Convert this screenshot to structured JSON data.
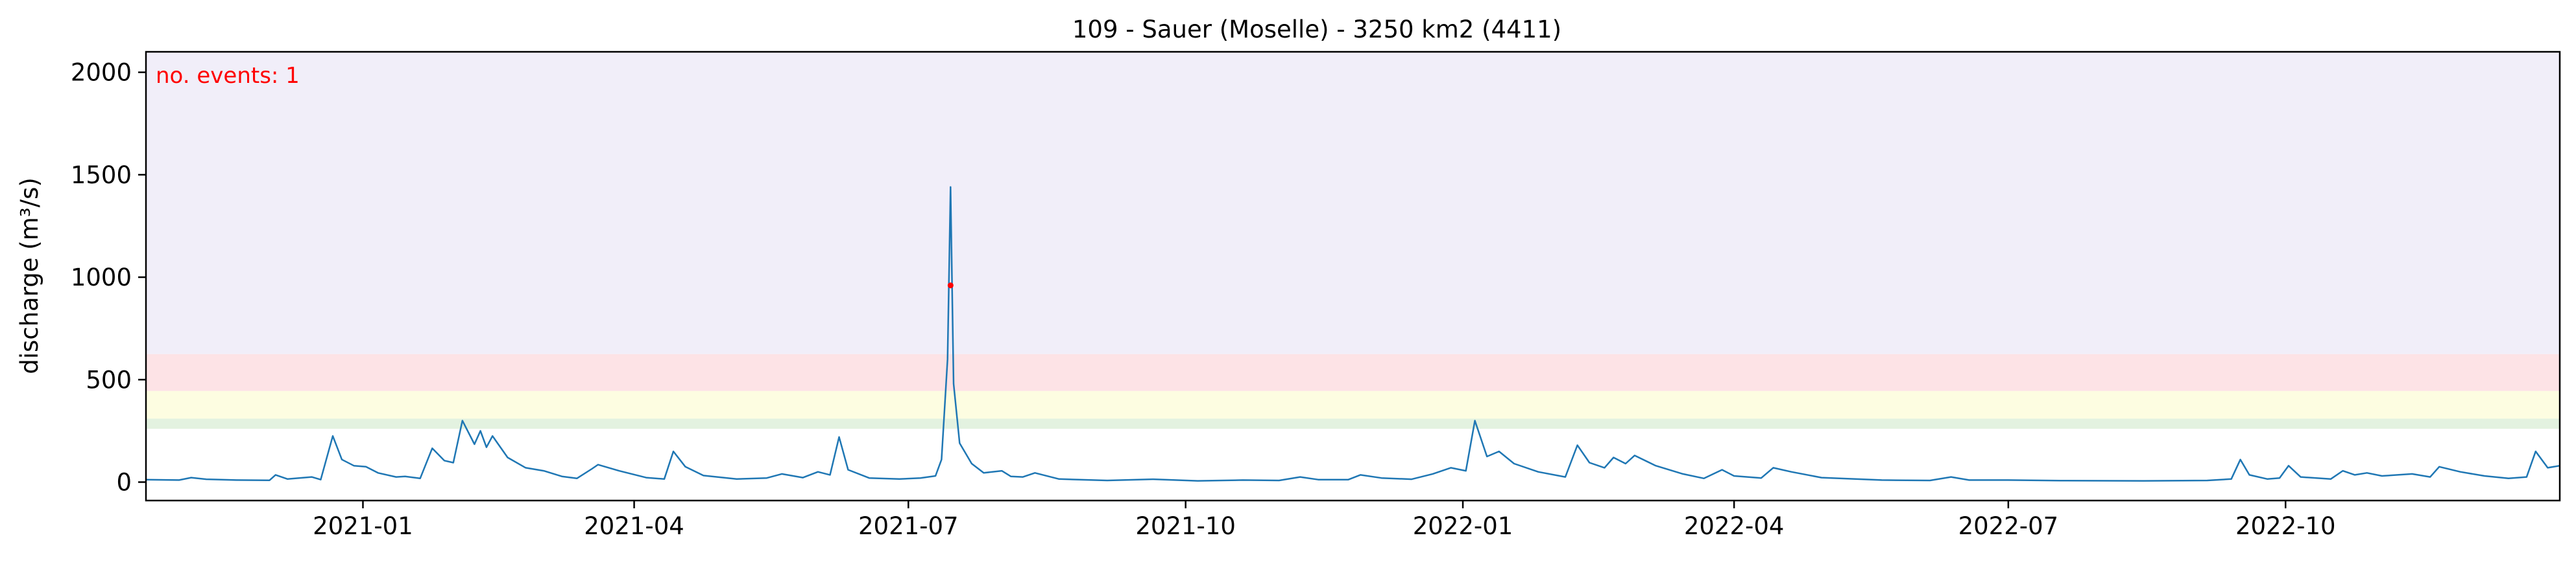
{
  "chart_data": {
    "type": "line",
    "title": "109 - Sauer (Moselle) - 3250 km2 (4411)",
    "xlabel": "",
    "ylabel": "discharge (m³/s)",
    "xlim": [
      "2020-10-21",
      "2022-12-31"
    ],
    "ylim": [
      -90,
      2100
    ],
    "grid": false,
    "x_ticks": [
      {
        "date": "2021-01-01",
        "label": "2021-01"
      },
      {
        "date": "2021-04-01",
        "label": "2021-04"
      },
      {
        "date": "2021-07-01",
        "label": "2021-07"
      },
      {
        "date": "2021-10-01",
        "label": "2021-10"
      },
      {
        "date": "2022-01-01",
        "label": "2022-01"
      },
      {
        "date": "2022-04-01",
        "label": "2022-04"
      },
      {
        "date": "2022-07-01",
        "label": "2022-07"
      },
      {
        "date": "2022-10-01",
        "label": "2022-10"
      }
    ],
    "y_ticks": [
      0,
      500,
      1000,
      1500,
      2000
    ],
    "bands": [
      {
        "from": 260,
        "to": 310,
        "color": "#e3f2e0"
      },
      {
        "from": 310,
        "to": 445,
        "color": "#fdfde1"
      },
      {
        "from": 445,
        "to": 625,
        "color": "#fde3e6"
      },
      {
        "from": 625,
        "to": 2100,
        "color": "#f1eef9"
      }
    ],
    "annotation": {
      "text": "no. events: 1",
      "color": "#ff0000"
    },
    "events": [
      {
        "date": "2021-07-15",
        "value": 960
      }
    ],
    "series": [
      {
        "color": "#1f77b4",
        "points": [
          [
            "2020-10-21",
            12
          ],
          [
            "2020-11-01",
            10
          ],
          [
            "2020-11-05",
            22
          ],
          [
            "2020-11-10",
            14
          ],
          [
            "2020-11-20",
            10
          ],
          [
            "2020-12-01",
            9
          ],
          [
            "2020-12-03",
            35
          ],
          [
            "2020-12-07",
            15
          ],
          [
            "2020-12-15",
            25
          ],
          [
            "2020-12-18",
            12
          ],
          [
            "2020-12-22",
            225
          ],
          [
            "2020-12-25",
            110
          ],
          [
            "2020-12-29",
            80
          ],
          [
            "2021-01-02",
            75
          ],
          [
            "2021-01-06",
            45
          ],
          [
            "2021-01-12",
            25
          ],
          [
            "2021-01-15",
            28
          ],
          [
            "2021-01-20",
            18
          ],
          [
            "2021-01-24",
            165
          ],
          [
            "2021-01-28",
            105
          ],
          [
            "2021-01-31",
            95
          ],
          [
            "2021-02-03",
            300
          ],
          [
            "2021-02-07",
            185
          ],
          [
            "2021-02-09",
            250
          ],
          [
            "2021-02-11",
            170
          ],
          [
            "2021-02-13",
            225
          ],
          [
            "2021-02-18",
            120
          ],
          [
            "2021-02-24",
            70
          ],
          [
            "2021-03-02",
            55
          ],
          [
            "2021-03-08",
            28
          ],
          [
            "2021-03-13",
            18
          ],
          [
            "2021-03-18",
            65
          ],
          [
            "2021-03-20",
            85
          ],
          [
            "2021-03-27",
            55
          ],
          [
            "2021-04-05",
            22
          ],
          [
            "2021-04-11",
            15
          ],
          [
            "2021-04-14",
            150
          ],
          [
            "2021-04-18",
            75
          ],
          [
            "2021-04-24",
            32
          ],
          [
            "2021-05-05",
            15
          ],
          [
            "2021-05-15",
            20
          ],
          [
            "2021-05-20",
            40
          ],
          [
            "2021-05-27",
            22
          ],
          [
            "2021-06-01",
            50
          ],
          [
            "2021-06-05",
            35
          ],
          [
            "2021-06-08",
            220
          ],
          [
            "2021-06-11",
            60
          ],
          [
            "2021-06-18",
            20
          ],
          [
            "2021-06-28",
            15
          ],
          [
            "2021-07-05",
            20
          ],
          [
            "2021-07-10",
            30
          ],
          [
            "2021-07-12",
            110
          ],
          [
            "2021-07-14",
            600
          ],
          [
            "2021-07-15",
            1440
          ],
          [
            "2021-07-16",
            480
          ],
          [
            "2021-07-18",
            190
          ],
          [
            "2021-07-22",
            90
          ],
          [
            "2021-07-26",
            45
          ],
          [
            "2021-08-01",
            55
          ],
          [
            "2021-08-04",
            28
          ],
          [
            "2021-08-08",
            25
          ],
          [
            "2021-08-12",
            45
          ],
          [
            "2021-08-20",
            15
          ],
          [
            "2021-09-05",
            8
          ],
          [
            "2021-09-20",
            14
          ],
          [
            "2021-10-05",
            6
          ],
          [
            "2021-10-20",
            10
          ],
          [
            "2021-11-01",
            8
          ],
          [
            "2021-11-08",
            25
          ],
          [
            "2021-11-14",
            12
          ],
          [
            "2021-11-24",
            12
          ],
          [
            "2021-11-28",
            35
          ],
          [
            "2021-12-05",
            20
          ],
          [
            "2021-12-15",
            14
          ],
          [
            "2021-12-22",
            40
          ],
          [
            "2021-12-28",
            70
          ],
          [
            "2022-01-02",
            55
          ],
          [
            "2022-01-05",
            300
          ],
          [
            "2022-01-09",
            125
          ],
          [
            "2022-01-13",
            150
          ],
          [
            "2022-01-18",
            90
          ],
          [
            "2022-01-26",
            50
          ],
          [
            "2022-02-04",
            25
          ],
          [
            "2022-02-08",
            180
          ],
          [
            "2022-02-12",
            95
          ],
          [
            "2022-02-17",
            70
          ],
          [
            "2022-02-20",
            120
          ],
          [
            "2022-02-24",
            90
          ],
          [
            "2022-02-27",
            130
          ],
          [
            "2022-03-06",
            80
          ],
          [
            "2022-03-15",
            40
          ],
          [
            "2022-03-22",
            18
          ],
          [
            "2022-03-28",
            60
          ],
          [
            "2022-04-01",
            30
          ],
          [
            "2022-04-10",
            20
          ],
          [
            "2022-04-14",
            70
          ],
          [
            "2022-04-20",
            50
          ],
          [
            "2022-04-30",
            22
          ],
          [
            "2022-05-20",
            10
          ],
          [
            "2022-06-05",
            8
          ],
          [
            "2022-06-12",
            25
          ],
          [
            "2022-06-18",
            10
          ],
          [
            "2022-07-01",
            10
          ],
          [
            "2022-07-20",
            7
          ],
          [
            "2022-08-15",
            6
          ],
          [
            "2022-09-05",
            8
          ],
          [
            "2022-09-13",
            15
          ],
          [
            "2022-09-16",
            110
          ],
          [
            "2022-09-19",
            35
          ],
          [
            "2022-09-25",
            15
          ],
          [
            "2022-09-29",
            20
          ],
          [
            "2022-10-02",
            80
          ],
          [
            "2022-10-06",
            25
          ],
          [
            "2022-10-16",
            15
          ],
          [
            "2022-10-20",
            55
          ],
          [
            "2022-10-24",
            35
          ],
          [
            "2022-10-28",
            45
          ],
          [
            "2022-11-02",
            30
          ],
          [
            "2022-11-12",
            40
          ],
          [
            "2022-11-18",
            25
          ],
          [
            "2022-11-21",
            75
          ],
          [
            "2022-11-28",
            50
          ],
          [
            "2022-12-06",
            30
          ],
          [
            "2022-12-14",
            18
          ],
          [
            "2022-12-20",
            25
          ],
          [
            "2022-12-23",
            150
          ],
          [
            "2022-12-27",
            70
          ],
          [
            "2022-12-31",
            80
          ]
        ]
      }
    ]
  }
}
